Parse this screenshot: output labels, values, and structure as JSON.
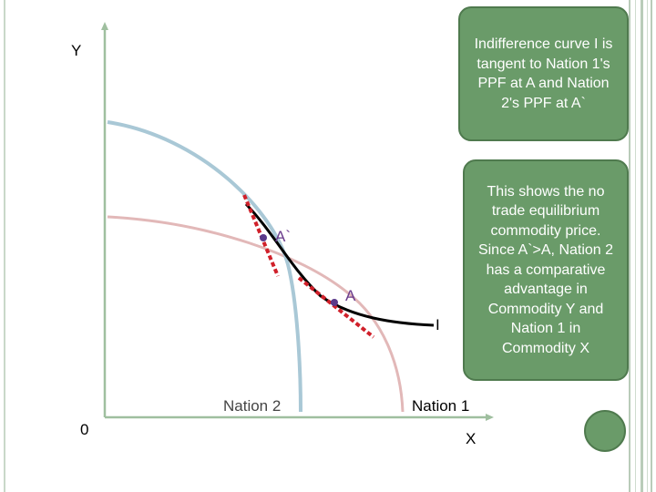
{
  "axes": {
    "y_label": "Y",
    "x_label": "X",
    "origin_label": "0"
  },
  "curves": {
    "nation2_label": "Nation 2",
    "nation1_label": "Nation 1",
    "indifference_label": "I"
  },
  "points": {
    "a_prime": "A`",
    "a": "A"
  },
  "callouts": {
    "tangency_text": "Indifference curve I is tangent to Nation 1's PPF at  A and Nation 2's PPF at A`",
    "explanation_text": "This shows the no trade equilibrium commodity price. Since A`>A, Nation 2 has a comparative advantage in Commodity Y and Nation 1 in Commodity X"
  },
  "colors": {
    "nation2_ppf": "#a9c8d6",
    "nation1_ppf": "#e2b8b8",
    "indifference": "#000000",
    "price_line": "#d0202a",
    "point_marker": "#5a3a8a",
    "callout_fill": "#6a9b69"
  }
}
